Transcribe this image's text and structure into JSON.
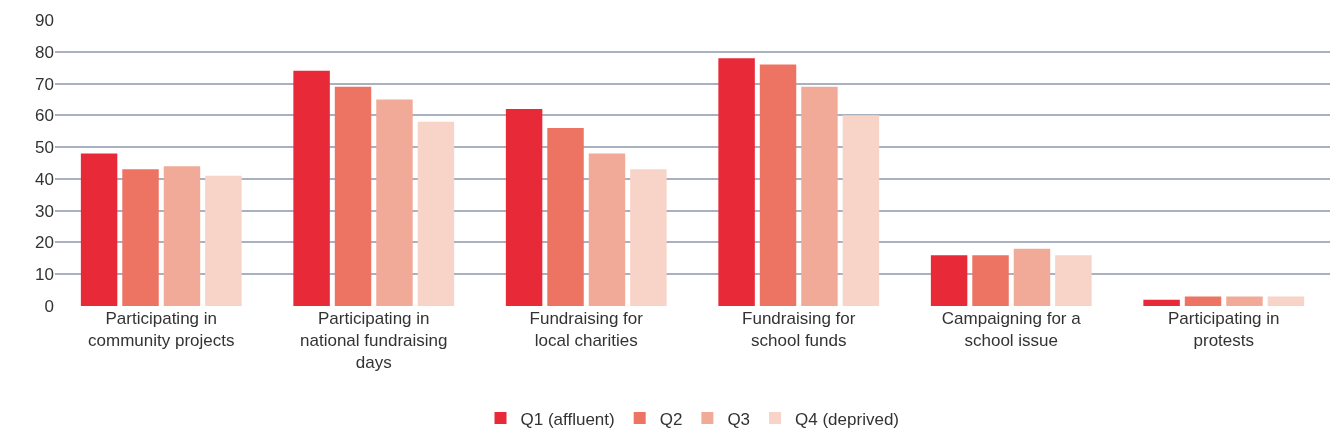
{
  "chart_data": {
    "type": "bar",
    "categories": [
      "Participating in community projects",
      "Participating in national fundraising days",
      "Fundraising for local charities",
      "Fundraising for school funds",
      "Campaigning for a school issue",
      "Participating in protests"
    ],
    "series": [
      {
        "name": "Q1 (affluent)",
        "color": "#e82937",
        "values": [
          48,
          74,
          62,
          78,
          16,
          2
        ]
      },
      {
        "name": "Q2",
        "color": "#ed7363",
        "values": [
          43,
          69,
          56,
          76,
          16,
          3
        ]
      },
      {
        "name": "Q3",
        "color": "#f2aa98",
        "values": [
          44,
          65,
          48,
          69,
          18,
          3
        ]
      },
      {
        "name": "Q4 (deprived)",
        "color": "#f8d3c8",
        "values": [
          41,
          58,
          43,
          60,
          16,
          3
        ]
      }
    ],
    "ylim": [
      0,
      90
    ],
    "yticks": [
      0,
      10,
      20,
      30,
      40,
      50,
      60,
      70,
      80,
      90
    ],
    "grid": "y",
    "legend": "bottom"
  }
}
